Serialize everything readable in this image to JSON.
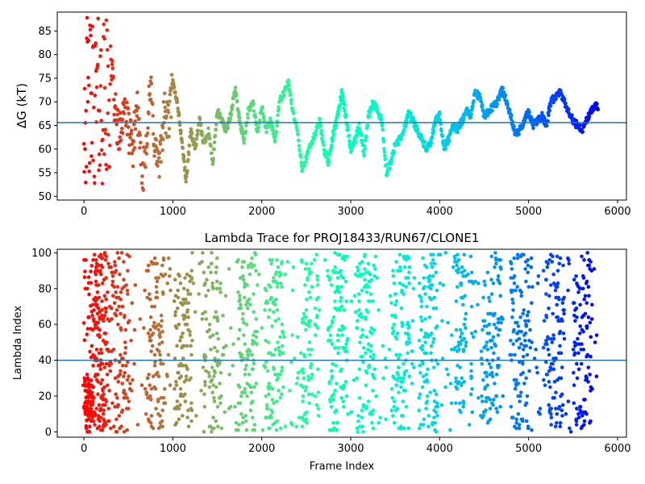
{
  "chart_data": [
    {
      "type": "scatter",
      "title": "",
      "xlabel": "",
      "ylabel": "ΔG (kT)",
      "xlim": [
        -300,
        6100
      ],
      "ylim": [
        49.2,
        89
      ],
      "x_ticks": [
        0,
        1000,
        2000,
        3000,
        4000,
        5000,
        6000
      ],
      "y_ticks": [
        50,
        55,
        60,
        65,
        70,
        75,
        80,
        85
      ],
      "hline": 65.6,
      "hline_color": "#1f77b4",
      "colormap": "rainbow",
      "grid": false,
      "legend": "none",
      "series_trace": {
        "x": [
          0,
          20,
          40,
          60,
          80,
          100,
          120,
          150,
          180,
          220,
          260,
          300,
          350,
          400,
          450,
          500,
          550,
          600,
          650,
          700,
          750,
          800,
          850,
          900,
          950,
          1000,
          1050,
          1100,
          1150,
          1200,
          1250,
          1300,
          1350,
          1400,
          1450,
          1500,
          1550,
          1600,
          1650,
          1700,
          1750,
          1800,
          1850,
          1900,
          1950,
          2000,
          2050,
          2100,
          2150,
          2200,
          2250,
          2300,
          2350,
          2400,
          2450,
          2500,
          2550,
          2600,
          2650,
          2700,
          2750,
          2800,
          2850,
          2900,
          2950,
          3000,
          3050,
          3100,
          3150,
          3200,
          3250,
          3300,
          3350,
          3400,
          3450,
          3500,
          3550,
          3600,
          3650,
          3700,
          3750,
          3800,
          3850,
          3900,
          3950,
          4000,
          4050,
          4100,
          4150,
          4200,
          4250,
          4300,
          4350,
          4400,
          4450,
          4500,
          4550,
          4600,
          4650,
          4700,
          4750,
          4800,
          4850,
          4900,
          4950,
          5000,
          5050,
          5100,
          5150,
          5200,
          5250,
          5300,
          5350,
          5400,
          5450,
          5500,
          5550,
          5600,
          5650,
          5700,
          5750,
          5780
        ],
        "y": [
          80,
          68,
          60,
          75,
          65,
          82,
          62,
          72,
          58,
          76,
          55,
          80,
          68,
          62,
          70,
          64,
          60,
          70,
          52,
          62,
          73,
          60,
          56,
          68,
          65,
          74,
          70,
          62,
          53,
          64,
          60,
          66,
          61,
          64,
          57,
          68,
          66,
          64,
          67,
          73,
          66,
          62,
          68,
          70,
          63,
          69,
          64,
          66,
          62,
          70,
          72,
          74,
          68,
          64,
          56,
          58,
          61,
          63,
          66,
          60,
          57,
          63,
          67,
          72,
          66,
          60,
          62,
          65,
          59,
          67,
          70,
          68,
          66,
          55,
          57,
          61,
          62,
          64,
          68,
          66,
          64,
          62,
          60,
          61,
          66,
          67,
          60,
          62,
          65,
          64,
          66,
          68,
          67,
          72,
          71,
          67,
          68,
          69,
          70,
          73,
          70,
          67,
          63,
          64,
          66,
          68,
          65,
          66,
          67,
          65,
          70,
          71,
          72,
          70,
          68,
          66,
          65,
          64,
          66,
          68,
          69,
          69
        ]
      }
    },
    {
      "type": "scatter",
      "title": "Lambda Trace for PROJ18433/RUN67/CLONE1",
      "xlabel": "Frame Index",
      "ylabel": "Lambda Index",
      "xlim": [
        -300,
        6100
      ],
      "ylim": [
        -3,
        102
      ],
      "x_ticks": [
        0,
        1000,
        2000,
        3000,
        4000,
        5000,
        6000
      ],
      "y_ticks": [
        0,
        20,
        40,
        60,
        80,
        100
      ],
      "hline": 40,
      "hline_color": "#1f77b4",
      "colormap": "rainbow",
      "grid": false,
      "legend": "none",
      "point_density": "dense vertical bands of lambda values 0-100 sampled across frames 0-5780"
    }
  ]
}
